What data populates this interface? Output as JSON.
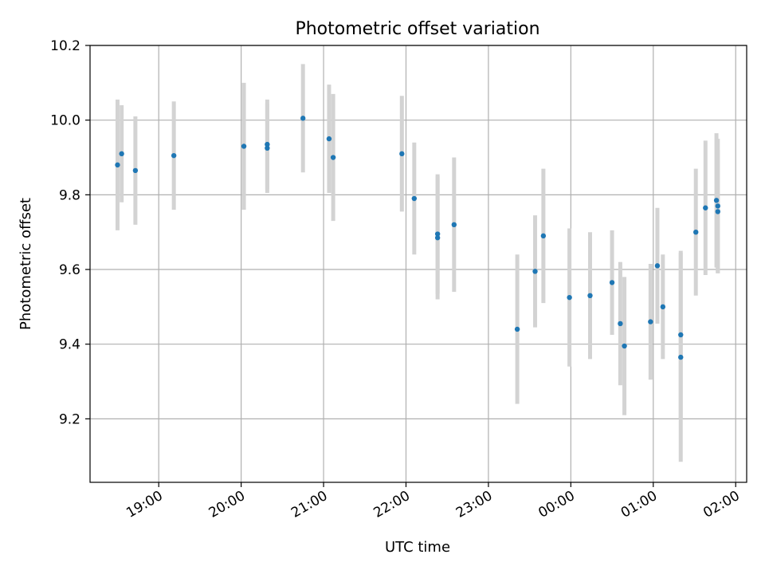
{
  "chart_data": {
    "type": "scatter",
    "title": "Photometric offset variation",
    "xlabel": "UTC time",
    "ylabel": "Photometric offset",
    "ylim": [
      9.03,
      10.2
    ],
    "xlim": [
      "18:10",
      "02:08"
    ],
    "x_day_offset_after_midnight": true,
    "grid": true,
    "legend": "none",
    "y_ticks": [
      "9.2",
      "9.4",
      "9.6",
      "9.8",
      "10.0",
      "10.2"
    ],
    "x_ticks": [
      "19:00",
      "20:00",
      "21:00",
      "22:00",
      "23:00",
      "00:00",
      "01:00",
      "02:00"
    ],
    "colors": {
      "point": "#1f77b4",
      "errorbar": "#d3d3d3",
      "grid": "#b0b0b0"
    },
    "points": [
      {
        "x": "18:30",
        "y": 9.88,
        "err": 0.175
      },
      {
        "x": "18:33",
        "y": 9.91,
        "err": 0.13
      },
      {
        "x": "18:43",
        "y": 9.865,
        "err": 0.145
      },
      {
        "x": "19:11",
        "y": 9.905,
        "err": 0.145
      },
      {
        "x": "20:02",
        "y": 9.93,
        "err": 0.17
      },
      {
        "x": "20:19",
        "y": 9.925,
        "err": 0.12
      },
      {
        "x": "20:19",
        "y": 9.935,
        "err": 0.12
      },
      {
        "x": "20:45",
        "y": 10.005,
        "err": 0.145
      },
      {
        "x": "21:04",
        "y": 9.95,
        "err": 0.145
      },
      {
        "x": "21:07",
        "y": 9.9,
        "err": 0.17
      },
      {
        "x": "21:57",
        "y": 9.91,
        "err": 0.155
      },
      {
        "x": "22:06",
        "y": 9.79,
        "err": 0.15
      },
      {
        "x": "22:23",
        "y": 9.695,
        "err": 0.16
      },
      {
        "x": "22:23",
        "y": 9.685,
        "err": 0.165
      },
      {
        "x": "22:35",
        "y": 9.72,
        "err": 0.18
      },
      {
        "x": "23:21",
        "y": 9.44,
        "err": 0.2
      },
      {
        "x": "23:34",
        "y": 9.595,
        "err": 0.15
      },
      {
        "x": "23:40",
        "y": 9.69,
        "err": 0.18
      },
      {
        "x": "23:59",
        "y": 9.525,
        "err": 0.185
      },
      {
        "x": "00:14",
        "y": 9.53,
        "err": 0.17
      },
      {
        "x": "00:30",
        "y": 9.565,
        "err": 0.14
      },
      {
        "x": "00:36",
        "y": 9.455,
        "err": 0.165
      },
      {
        "x": "00:39",
        "y": 9.395,
        "err": 0.185
      },
      {
        "x": "00:58",
        "y": 9.46,
        "err": 0.155
      },
      {
        "x": "01:03",
        "y": 9.61,
        "err": 0.155
      },
      {
        "x": "01:07",
        "y": 9.5,
        "err": 0.14
      },
      {
        "x": "01:20",
        "y": 9.425,
        "err": 0.225
      },
      {
        "x": "01:20",
        "y": 9.365,
        "err": 0.28
      },
      {
        "x": "01:31",
        "y": 9.7,
        "err": 0.17
      },
      {
        "x": "01:38",
        "y": 9.765,
        "err": 0.18
      },
      {
        "x": "01:46",
        "y": 9.785,
        "err": 0.18
      },
      {
        "x": "01:47",
        "y": 9.77,
        "err": 0.18
      },
      {
        "x": "01:47",
        "y": 9.755,
        "err": 0.165
      }
    ]
  }
}
